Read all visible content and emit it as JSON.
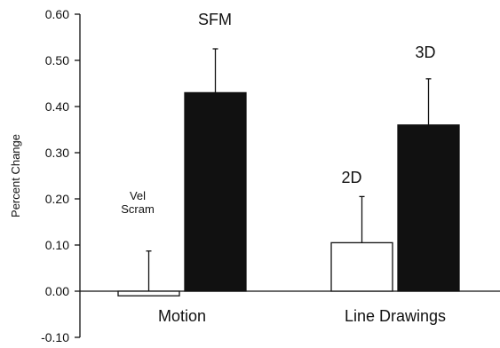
{
  "chart_data": {
    "type": "bar",
    "title": "",
    "xlabel": "",
    "ylabel": "Percent Change",
    "ylim": [
      -0.1,
      0.6
    ],
    "yticks": [
      "-0.10",
      "0.00",
      "0.10",
      "0.20",
      "0.30",
      "0.40",
      "0.50",
      "0.60"
    ],
    "tick_values": [
      -0.1,
      0.0,
      0.1,
      0.2,
      0.3,
      0.4,
      0.5,
      0.6
    ],
    "categories": [
      "Motion",
      "Line Drawings"
    ],
    "grid": false,
    "bars": [
      {
        "category": "Motion",
        "label": [
          "Vel",
          "Scram"
        ],
        "value": -0.01,
        "error": 0.087,
        "fill": "#ffffff"
      },
      {
        "category": "Motion",
        "label": [
          "SFM"
        ],
        "value": 0.43,
        "error": 0.095,
        "fill": "#111111"
      },
      {
        "category": "Line Drawings",
        "label": [
          "2D"
        ],
        "value": 0.105,
        "error": 0.1,
        "fill": "#ffffff"
      },
      {
        "category": "Line Drawings",
        "label": [
          "3D"
        ],
        "value": 0.36,
        "error": 0.1,
        "fill": "#111111"
      }
    ]
  }
}
